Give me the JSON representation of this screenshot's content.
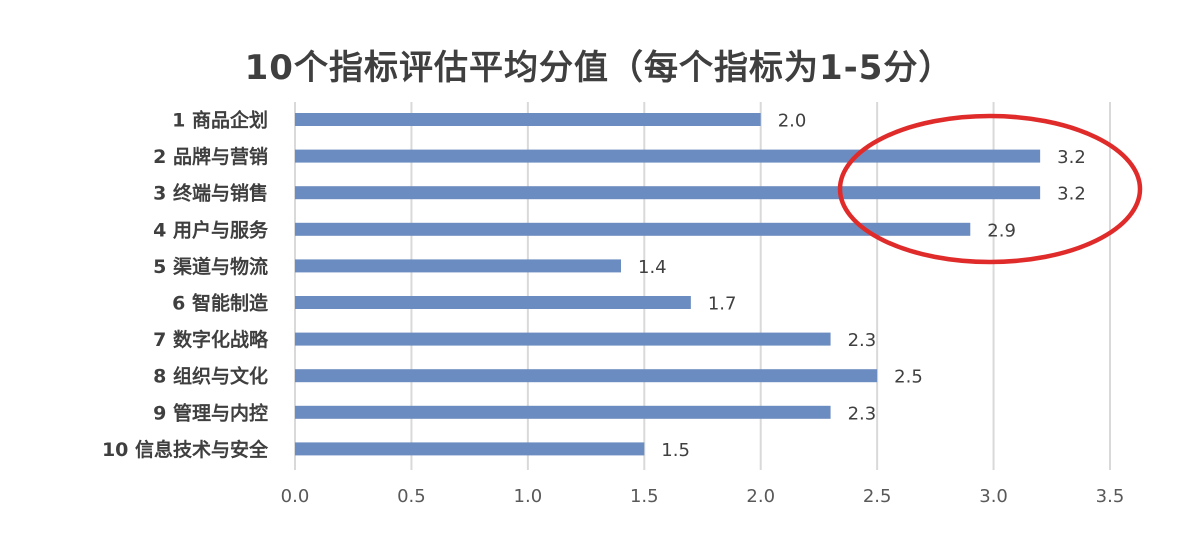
{
  "chart_data": {
    "type": "bar",
    "orientation": "horizontal",
    "title": "10个指标评估平均分值（每个指标为1-5分）",
    "categories": [
      "1 商品企划",
      "2 品牌与营销",
      "3 终端与销售",
      "4 用户与服务",
      "5 渠道与物流",
      "6 智能制造",
      "7 数字化战略",
      "8 组织与文化",
      "9 管理与内控",
      "10 信息技术与安全"
    ],
    "values": [
      2.0,
      3.2,
      3.2,
      2.9,
      1.4,
      1.7,
      2.3,
      2.5,
      2.3,
      1.5
    ],
    "value_labels": [
      "2.0",
      "3.2",
      "3.2",
      "2.9",
      "1.4",
      "1.7",
      "2.3",
      "2.5",
      "2.3",
      "1.5"
    ],
    "xlim": [
      0,
      3.5
    ],
    "x_ticks": [
      "0.0",
      "0.5",
      "1.0",
      "1.5",
      "2.0",
      "2.5",
      "3.0",
      "3.5"
    ],
    "grid": "vertical",
    "legend": "none",
    "bar_color": "#6b8cc0",
    "annotation": {
      "shape": "ellipse",
      "color": "#e02b2b",
      "highlights": [
        "2 品牌与营销",
        "3 终端与销售",
        "4 用户与服务"
      ]
    }
  }
}
